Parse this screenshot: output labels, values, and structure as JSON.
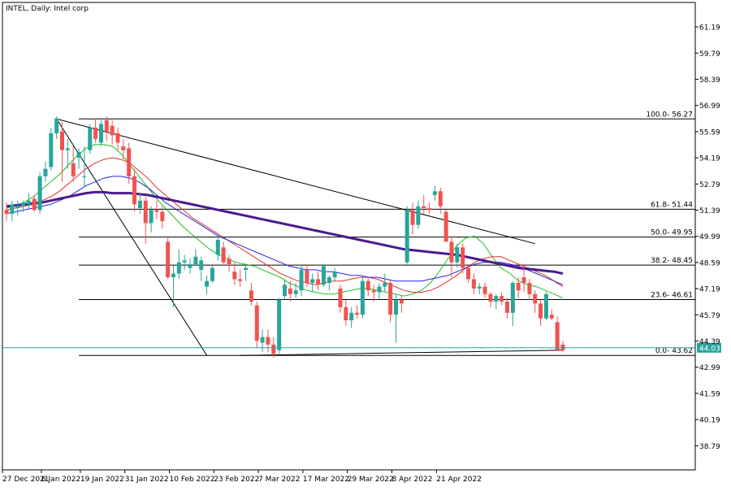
{
  "title": "INTEL, Daily:  Intel corp",
  "colors": {
    "bull": "#26a69a",
    "bear": "#ef5350",
    "ma_green": "#1fbf1f",
    "ma_red": "#e03030",
    "ma_blue": "#2424d8",
    "ma_purple": "#4b1b8c",
    "bid_line": "#26a69a",
    "grid": "#000000",
    "fractal": "#9a9a9a"
  },
  "chart_data": {
    "type": "candlestick",
    "symbol": "INTEL",
    "timeframe": "Daily",
    "ylim": [
      37.5,
      62.5
    ],
    "y_ticks": [
      "61.19",
      "59.79",
      "58.39",
      "56.99",
      "55.59",
      "54.19",
      "52.79",
      "51.39",
      "49.99",
      "48.59",
      "47.19",
      "45.79",
      "44.39",
      "42.99",
      "41.59",
      "40.19",
      "38.79"
    ],
    "x_ticks": [
      {
        "label": "27 Dec 2021",
        "i": 0
      },
      {
        "label": "6 Jan 2022",
        "i": 7
      },
      {
        "label": "19 Jan 2022",
        "i": 14
      },
      {
        "label": "31 Jan 2022",
        "i": 22
      },
      {
        "label": "10 Feb 2022",
        "i": 30
      },
      {
        "label": "23 Feb 2022",
        "i": 38
      },
      {
        "label": "7 Mar 2022",
        "i": 46
      },
      {
        "label": "17 Mar 2022",
        "i": 54
      },
      {
        "label": "29 Mar 2022",
        "i": 62
      },
      {
        "label": "8 Apr 2022",
        "i": 70
      },
      {
        "label": "21 Apr 2022",
        "i": 78
      }
    ],
    "candles": [
      [
        51.4,
        51.8,
        50.8,
        51.2
      ],
      [
        51.2,
        51.9,
        50.8,
        51.7
      ],
      [
        51.5,
        51.9,
        51.1,
        51.6
      ],
      [
        51.6,
        51.9,
        51.3,
        51.8
      ],
      [
        51.7,
        52.3,
        51.5,
        51.9
      ],
      [
        52.0,
        52.2,
        51.3,
        51.4
      ],
      [
        51.4,
        53.4,
        51.2,
        53.2
      ],
      [
        53.2,
        54.0,
        52.9,
        53.6
      ],
      [
        53.7,
        55.8,
        53.5,
        55.5
      ],
      [
        55.5,
        56.4,
        55.2,
        56.3
      ],
      [
        55.6,
        56.1,
        52.9,
        54.6
      ],
      [
        54.6,
        55.2,
        53.6,
        54.7
      ],
      [
        53.9,
        54.8,
        52.9,
        53.2
      ],
      [
        54.2,
        54.7,
        53.6,
        54.5
      ],
      [
        53.2,
        54.8,
        52.6,
        53.2
      ],
      [
        54.6,
        56.0,
        54.4,
        55.8
      ],
      [
        55.8,
        56.3,
        55.0,
        55.2
      ],
      [
        55.0,
        56.2,
        54.8,
        56.0
      ],
      [
        56.2,
        56.4,
        55.1,
        55.6
      ],
      [
        55.9,
        56.2,
        54.9,
        55.4
      ],
      [
        55.5,
        55.8,
        54.6,
        55.0
      ],
      [
        54.8,
        55.2,
        54.1,
        54.6
      ],
      [
        54.7,
        55.0,
        52.8,
        53.2
      ],
      [
        53.2,
        53.6,
        51.3,
        51.7
      ],
      [
        51.5,
        52.3,
        51.2,
        51.9
      ],
      [
        51.9,
        52.1,
        49.6,
        50.7
      ],
      [
        50.7,
        51.6,
        50.2,
        51.4
      ],
      [
        51.4,
        51.9,
        50.9,
        51.3
      ],
      [
        51.3,
        51.6,
        50.4,
        50.8
      ],
      [
        49.7,
        49.9,
        47.7,
        47.8
      ],
      [
        47.8,
        48.4,
        46.2,
        48.0
      ],
      [
        48.0,
        49.3,
        47.7,
        48.6
      ],
      [
        48.6,
        49.0,
        48.2,
        48.7
      ],
      [
        48.3,
        48.8,
        48.0,
        48.5
      ],
      [
        48.5,
        49.3,
        48.4,
        48.9
      ],
      [
        48.2,
        48.9,
        47.6,
        48.7
      ],
      [
        47.3,
        47.9,
        46.9,
        47.6
      ],
      [
        47.6,
        48.4,
        47.5,
        48.3
      ],
      [
        49.0,
        50.1,
        48.7,
        49.8
      ],
      [
        49.4,
        49.7,
        48.5,
        48.6
      ],
      [
        48.8,
        49.0,
        48.1,
        48.5
      ],
      [
        48.1,
        48.6,
        47.4,
        47.7
      ],
      [
        47.7,
        48.2,
        47.3,
        47.6
      ],
      [
        48.2,
        48.5,
        47.6,
        48.3
      ],
      [
        47.1,
        47.5,
        46.3,
        46.5
      ],
      [
        46.3,
        46.5,
        44.0,
        44.4
      ],
      [
        44.3,
        45.0,
        43.8,
        44.6
      ],
      [
        44.6,
        45.0,
        43.8,
        44.2
      ],
      [
        44.2,
        44.6,
        43.5,
        43.7
      ],
      [
        43.9,
        46.7,
        43.7,
        46.6
      ],
      [
        46.8,
        47.7,
        46.6,
        47.4
      ],
      [
        47.2,
        47.6,
        46.5,
        46.9
      ],
      [
        46.9,
        47.5,
        46.7,
        47.1
      ],
      [
        47.1,
        48.4,
        46.8,
        48.2
      ],
      [
        48.2,
        48.5,
        47.3,
        47.5
      ],
      [
        47.5,
        48.0,
        47.0,
        47.7
      ],
      [
        47.7,
        48.1,
        47.1,
        47.4
      ],
      [
        47.4,
        48.5,
        47.3,
        48.4
      ],
      [
        47.5,
        47.9,
        47.1,
        47.8
      ],
      [
        47.8,
        48.3,
        47.6,
        48.1
      ],
      [
        47.2,
        47.4,
        45.9,
        46.2
      ],
      [
        46.2,
        46.6,
        45.2,
        45.5
      ],
      [
        45.5,
        46.2,
        45.1,
        45.9
      ],
      [
        45.9,
        46.3,
        45.6,
        45.8
      ],
      [
        45.8,
        47.9,
        45.6,
        47.6
      ],
      [
        47.6,
        47.8,
        46.8,
        47.1
      ],
      [
        47.1,
        47.4,
        46.5,
        47.0
      ],
      [
        47.0,
        47.5,
        46.6,
        47.3
      ],
      [
        47.3,
        48.0,
        47.0,
        47.5
      ],
      [
        47.5,
        47.7,
        45.4,
        45.8
      ],
      [
        45.8,
        46.9,
        44.3,
        46.6
      ],
      [
        46.6,
        46.8,
        45.9,
        46.4
      ],
      [
        48.6,
        51.6,
        48.4,
        51.4
      ],
      [
        51.4,
        51.8,
        50.1,
        50.6
      ],
      [
        50.6,
        51.9,
        50.4,
        51.6
      ],
      [
        51.6,
        52.2,
        51.2,
        51.5
      ],
      [
        51.5,
        51.8,
        51.2,
        51.4
      ],
      [
        52.2,
        52.7,
        51.9,
        52.4
      ],
      [
        52.4,
        52.6,
        51.2,
        51.6
      ],
      [
        51.3,
        51.4,
        49.7,
        49.7
      ],
      [
        49.7,
        50.0,
        47.8,
        48.6
      ],
      [
        48.6,
        49.6,
        48.3,
        49.4
      ],
      [
        49.4,
        49.6,
        48.0,
        48.3
      ],
      [
        48.3,
        48.5,
        47.5,
        47.7
      ],
      [
        47.7,
        48.0,
        46.9,
        47.2
      ],
      [
        47.2,
        47.5,
        46.9,
        47.3
      ],
      [
        47.3,
        47.5,
        46.7,
        46.9
      ],
      [
        46.9,
        47.0,
        46.2,
        46.5
      ],
      [
        46.5,
        46.9,
        46.1,
        46.8
      ],
      [
        46.8,
        47.0,
        46.3,
        46.5
      ],
      [
        46.5,
        46.7,
        45.6,
        45.9
      ],
      [
        45.9,
        47.6,
        45.2,
        47.5
      ],
      [
        47.5,
        47.8,
        46.7,
        47.1
      ],
      [
        47.8,
        48.5,
        47.0,
        47.5
      ],
      [
        47.5,
        47.7,
        46.6,
        46.9
      ],
      [
        46.9,
        47.1,
        45.9,
        46.4
      ],
      [
        46.4,
        46.6,
        45.2,
        45.6
      ],
      [
        45.6,
        47.0,
        45.5,
        46.9
      ],
      [
        45.8,
        46.1,
        45.5,
        45.6
      ],
      [
        45.4,
        45.7,
        43.9,
        43.9
      ],
      [
        44.2,
        44.4,
        43.8,
        43.9
      ]
    ],
    "ma_green": [
      51.5,
      51.6,
      51.8,
      52.1,
      52.5,
      52.9,
      53.3,
      53.8,
      54.3,
      54.7,
      54.9,
      54.9,
      54.8,
      54.4,
      53.8,
      53.2,
      52.6,
      52.0,
      51.5,
      51.0,
      50.5,
      50.1,
      49.7,
      49.3,
      49.0,
      48.8,
      48.6,
      48.5,
      48.4,
      48.2,
      48.0,
      47.8,
      47.5,
      47.3,
      47.1,
      47.0,
      46.9,
      46.9,
      47.0,
      47.1,
      47.2,
      47.2,
      47.1,
      47.0,
      46.9,
      46.8,
      46.9,
      47.1,
      47.5,
      48.1,
      48.8,
      49.5,
      49.9,
      50.0,
      49.6,
      48.9,
      48.3,
      48.0,
      47.6,
      47.4,
      47.3,
      47.1,
      46.9,
      46.7
    ],
    "ma_red": [
      51.4,
      51.5,
      51.6,
      51.7,
      51.9,
      52.1,
      52.4,
      52.8,
      53.2,
      53.6,
      53.9,
      54.1,
      54.2,
      54.1,
      53.9,
      53.5,
      53.1,
      52.6,
      52.2,
      51.8,
      51.4,
      51.0,
      50.7,
      50.4,
      50.1,
      49.8,
      49.5,
      49.2,
      48.9,
      48.6,
      48.3,
      48.0,
      47.8,
      47.6,
      47.5,
      47.4,
      47.5,
      47.6,
      47.6,
      47.7,
      47.8,
      47.8,
      47.7,
      47.5,
      47.3,
      47.1,
      47.0,
      47.0,
      47.1,
      47.3,
      47.6,
      47.9,
      48.3,
      48.6,
      48.8,
      48.9,
      48.9,
      48.7,
      48.5,
      48.3,
      48.1,
      47.9,
      47.6,
      47.3
    ],
    "ma_blue": [
      51.2,
      51.3,
      51.4,
      51.5,
      51.6,
      51.7,
      51.9,
      52.1,
      52.4,
      52.7,
      52.9,
      53.1,
      53.2,
      53.2,
      53.1,
      52.9,
      52.6,
      52.2,
      51.8,
      51.5,
      51.2,
      50.9,
      50.6,
      50.3,
      50.0,
      49.8,
      49.6,
      49.4,
      49.2,
      49.0,
      48.8,
      48.6,
      48.4,
      48.3,
      48.2,
      48.2,
      48.1,
      48.1,
      48.0,
      47.9,
      47.9,
      47.8,
      47.8,
      47.7,
      47.6,
      47.6,
      47.6,
      47.6,
      47.7,
      47.8,
      47.9,
      48.1,
      48.3,
      48.5,
      48.6,
      48.6,
      48.6,
      48.5,
      48.4,
      48.2,
      48.0,
      47.8,
      47.6,
      47.4
    ],
    "ma_purple": [
      51.6,
      51.65,
      51.7,
      51.75,
      51.8,
      51.9,
      52.0,
      52.1,
      52.2,
      52.3,
      52.35,
      52.35,
      52.3,
      52.3,
      52.3,
      52.25,
      52.2,
      52.1,
      52.0,
      51.9,
      51.8,
      51.7,
      51.6,
      51.5,
      51.4,
      51.3,
      51.2,
      51.1,
      51.0,
      50.9,
      50.8,
      50.7,
      50.6,
      50.5,
      50.4,
      50.3,
      50.2,
      50.1,
      50.0,
      49.9,
      49.8,
      49.7,
      49.6,
      49.5,
      49.4,
      49.3,
      49.25,
      49.2,
      49.15,
      49.1,
      49.05,
      49.0,
      48.9,
      48.8,
      48.7,
      48.6,
      48.5,
      48.4,
      48.3,
      48.25,
      48.2,
      48.15,
      48.1,
      48.0
    ],
    "fibonacci": [
      {
        "label": "100.0- 56.27",
        "value": 56.27
      },
      {
        "label": "61.8- 51.44",
        "value": 51.44
      },
      {
        "label": "50.0- 49.95",
        "value": 49.95
      },
      {
        "label": "38.2- 48.45",
        "value": 48.45
      },
      {
        "label": "23.6- 46.61",
        "value": 46.61
      },
      {
        "label": "0.0- 43.62",
        "value": 43.62
      }
    ],
    "current_price": "44.03",
    "current_value": 44.03,
    "trendline": {
      "from": {
        "i": 9,
        "price": 56.27
      },
      "to": {
        "i": 95,
        "price": 49.6
      }
    },
    "diagonal": {
      "from": {
        "i": 9,
        "price": 56.27
      },
      "to": {
        "i": 36,
        "price": 43.62
      }
    },
    "support_line": {
      "from": {
        "i": 42,
        "price": 43.62
      },
      "to": {
        "i": 100,
        "price": 43.9
      }
    }
  }
}
